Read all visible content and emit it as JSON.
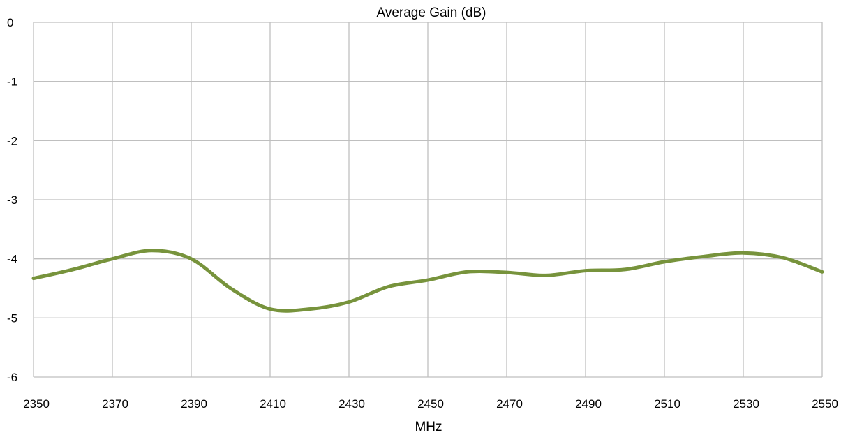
{
  "chart_data": {
    "type": "line",
    "title": "Average  Gain (dB)",
    "xlabel": "MHz",
    "ylabel": "",
    "xlim": [
      2350,
      2550
    ],
    "ylim": [
      -6,
      0
    ],
    "x_ticks": [
      "2350",
      "2370",
      "2390",
      "2410",
      "2430",
      "2450",
      "2470",
      "2490",
      "2510",
      "2530",
      "2550"
    ],
    "y_ticks": [
      "0",
      "-1",
      "-2",
      "-3",
      "-4",
      "-5",
      "-6"
    ],
    "grid": true,
    "legend": "none",
    "series": [
      {
        "color": "#77933c",
        "x": [
          2350,
          2360,
          2370,
          2380,
          2390,
          2400,
          2410,
          2420,
          2430,
          2440,
          2450,
          2460,
          2470,
          2480,
          2490,
          2500,
          2510,
          2520,
          2530,
          2540,
          2550
        ],
        "y": [
          -4.33,
          -4.18,
          -4.0,
          -3.86,
          -4.0,
          -4.5,
          -4.85,
          -4.85,
          -4.73,
          -4.47,
          -4.36,
          -4.22,
          -4.23,
          -4.28,
          -4.2,
          -4.18,
          -4.05,
          -3.96,
          -3.9,
          -3.98,
          -4.22
        ]
      }
    ]
  }
}
